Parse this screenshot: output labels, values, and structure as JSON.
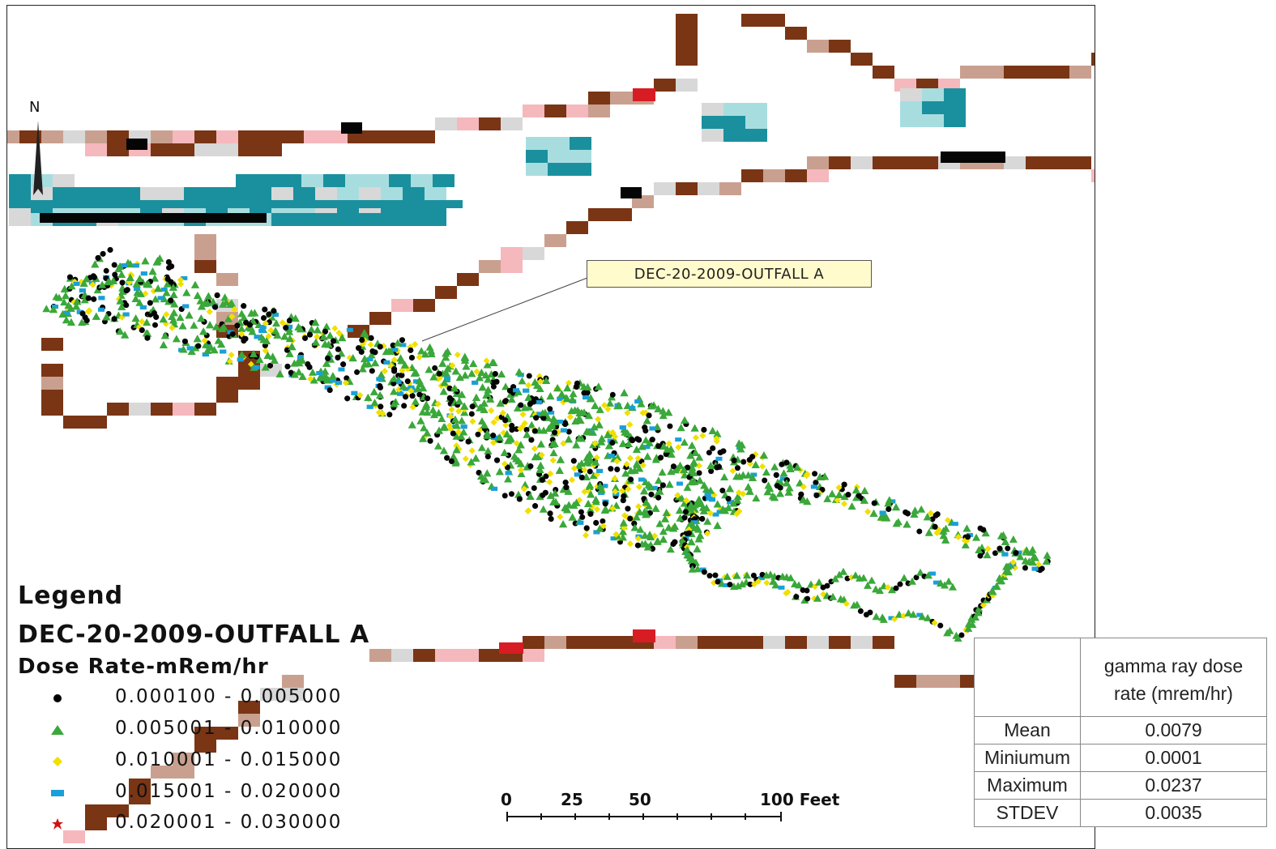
{
  "map": {
    "callout_label": "DEC-20-2009-OUTFALL A",
    "north_label": "N"
  },
  "legend": {
    "title": "Legend",
    "layer_name": "DEC-20-2009-OUTFALL A",
    "field_name": "Dose Rate-mRem/hr",
    "classes": [
      {
        "label": "0.000100 - 0.005000",
        "symbol": "circle",
        "color": "#000000"
      },
      {
        "label": "0.005001 - 0.010000",
        "symbol": "triangle",
        "color": "#3aa83a"
      },
      {
        "label": "0.010001 - 0.015000",
        "symbol": "diamond",
        "color": "#f0e000"
      },
      {
        "label": "0.015001 - 0.020000",
        "symbol": "square",
        "color": "#1aa0d8"
      },
      {
        "label": "0.020001 - 0.030000",
        "symbol": "star",
        "color": "#d01010"
      }
    ]
  },
  "scale_bar": {
    "ticks": [
      "0",
      "25",
      "50",
      "100 Feet"
    ]
  },
  "stats_table": {
    "header": "gamma ray dose rate (mrem/hr)",
    "header_line1": "gamma ray dose",
    "header_line2": "rate (mrem/hr)",
    "rows": [
      {
        "label": "Mean",
        "value": "0.0079"
      },
      {
        "label": "Miniumum",
        "value": "0.0001"
      },
      {
        "label": "Maximum",
        "value": "0.0237"
      },
      {
        "label": "STDEV",
        "value": "0.0035"
      }
    ]
  },
  "colors": {
    "brown": "#7a3515",
    "tan": "#c9a08f",
    "pink": "#f5b8bd",
    "gray": "#d8d8d8",
    "teal": "#1a909e",
    "light_teal": "#a8dde0",
    "red": "#d81c24",
    "black": "#050505",
    "green": "#3aa83a",
    "yellow": "#f0e000",
    "blue": "#1aa0d8"
  }
}
